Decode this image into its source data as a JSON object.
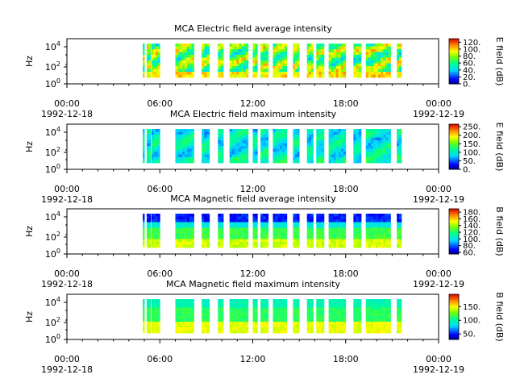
{
  "figure": {
    "background": "#ffffff"
  },
  "chart_data": [
    {
      "type": "heatmap",
      "title": "MCA  Electric field average intensity",
      "ylabel": "Hz",
      "yscale": "log",
      "yticks": [
        {
          "exp": "0"
        },
        {
          "exp": "2"
        },
        {
          "exp": "4"
        }
      ],
      "xticks": [
        {
          "time": "00:00",
          "date": "1992-12-18"
        },
        {
          "time": "06:00",
          "date": ""
        },
        {
          "time": "12:00",
          "date": ""
        },
        {
          "time": "18:00",
          "date": ""
        },
        {
          "time": "00:00",
          "date": "1992-12-19"
        }
      ],
      "xrange_hours": [
        0,
        24
      ],
      "data_segments_hours": [
        [
          4.9,
          5.0
        ],
        [
          5.15,
          5.4
        ],
        [
          5.45,
          6.0
        ],
        [
          7.0,
          8.2
        ],
        [
          8.7,
          9.2
        ],
        [
          9.75,
          10.1
        ],
        [
          10.5,
          11.7
        ],
        [
          12.0,
          12.3
        ],
        [
          12.5,
          13.0
        ],
        [
          13.3,
          14.2
        ],
        [
          14.6,
          15.0
        ],
        [
          15.5,
          15.9
        ],
        [
          16.1,
          16.6
        ],
        [
          16.9,
          18.0
        ],
        [
          18.5,
          19.0
        ],
        [
          19.3,
          20.9
        ],
        [
          21.3,
          21.6
        ]
      ],
      "colorbar": {
        "label": "E field (dB)",
        "range": [
          0,
          130
        ],
        "ticks": [
          "0.",
          "20.",
          "40.",
          "60.",
          "80.",
          "100.",
          "120."
        ]
      },
      "style": "avg_e"
    },
    {
      "type": "heatmap",
      "title": "MCA  Electric field maximum intensity",
      "ylabel": "Hz",
      "yscale": "log",
      "yticks": [
        {
          "exp": "0"
        },
        {
          "exp": "2"
        },
        {
          "exp": "4"
        }
      ],
      "xticks": [
        {
          "time": "00:00",
          "date": "1992-12-18"
        },
        {
          "time": "06:00",
          "date": ""
        },
        {
          "time": "12:00",
          "date": ""
        },
        {
          "time": "18:00",
          "date": ""
        },
        {
          "time": "00:00",
          "date": "1992-12-19"
        }
      ],
      "xrange_hours": [
        0,
        24
      ],
      "data_segments_hours": [
        [
          4.9,
          5.0
        ],
        [
          5.15,
          5.4
        ],
        [
          5.45,
          6.0
        ],
        [
          7.0,
          8.2
        ],
        [
          8.7,
          9.2
        ],
        [
          9.75,
          10.1
        ],
        [
          10.5,
          11.7
        ],
        [
          12.0,
          12.3
        ],
        [
          12.5,
          13.0
        ],
        [
          13.3,
          14.2
        ],
        [
          14.6,
          15.0
        ],
        [
          15.5,
          15.9
        ],
        [
          16.1,
          16.6
        ],
        [
          16.9,
          18.0
        ],
        [
          18.5,
          19.0
        ],
        [
          19.3,
          20.9
        ],
        [
          21.3,
          21.6
        ]
      ],
      "colorbar": {
        "label": "E field (dB)",
        "range": [
          0,
          265
        ],
        "ticks": [
          "0.",
          "50.",
          "100.",
          "150.",
          "200.",
          "250."
        ]
      },
      "style": "max_e"
    },
    {
      "type": "heatmap",
      "title": "MCA  Magnetic field average intensity",
      "ylabel": "Hz",
      "yscale": "log",
      "yticks": [
        {
          "exp": "0"
        },
        {
          "exp": "2"
        },
        {
          "exp": "4"
        }
      ],
      "xticks": [
        {
          "time": "00:00",
          "date": "1992-12-18"
        },
        {
          "time": "06:00",
          "date": ""
        },
        {
          "time": "12:00",
          "date": ""
        },
        {
          "time": "18:00",
          "date": ""
        },
        {
          "time": "00:00",
          "date": "1992-12-19"
        }
      ],
      "xrange_hours": [
        0,
        24
      ],
      "data_segments_hours": [
        [
          4.9,
          5.0
        ],
        [
          5.15,
          5.4
        ],
        [
          5.45,
          6.0
        ],
        [
          7.0,
          8.2
        ],
        [
          8.7,
          9.2
        ],
        [
          9.75,
          10.1
        ],
        [
          10.5,
          11.7
        ],
        [
          12.0,
          12.3
        ],
        [
          12.5,
          13.0
        ],
        [
          13.3,
          14.2
        ],
        [
          14.6,
          15.0
        ],
        [
          15.5,
          15.9
        ],
        [
          16.1,
          16.6
        ],
        [
          16.9,
          18.0
        ],
        [
          18.5,
          19.0
        ],
        [
          19.3,
          20.9
        ],
        [
          21.3,
          21.6
        ]
      ],
      "colorbar": {
        "label": "B field (dB)",
        "range": [
          55,
          190
        ],
        "ticks": [
          "60.",
          "80.",
          "100.",
          "120.",
          "140.",
          "160.",
          "180."
        ]
      },
      "style": "avg_b"
    },
    {
      "type": "heatmap",
      "title": "MCA  Magnetic field maximum intensity",
      "ylabel": "Hz",
      "yscale": "log",
      "yticks": [
        {
          "exp": "0"
        },
        {
          "exp": "2"
        },
        {
          "exp": "4"
        }
      ],
      "xticks": [
        {
          "time": "00:00",
          "date": "1992-12-18"
        },
        {
          "time": "06:00",
          "date": ""
        },
        {
          "time": "12:00",
          "date": ""
        },
        {
          "time": "18:00",
          "date": ""
        },
        {
          "time": "00:00",
          "date": "1992-12-19"
        }
      ],
      "xrange_hours": [
        0,
        24
      ],
      "data_segments_hours": [
        [
          4.9,
          5.0
        ],
        [
          5.15,
          5.4
        ],
        [
          5.45,
          6.0
        ],
        [
          7.0,
          8.2
        ],
        [
          8.7,
          9.2
        ],
        [
          9.75,
          10.1
        ],
        [
          10.5,
          11.7
        ],
        [
          12.0,
          12.3
        ],
        [
          12.5,
          13.0
        ],
        [
          13.3,
          14.2
        ],
        [
          14.6,
          15.0
        ],
        [
          15.5,
          15.9
        ],
        [
          16.1,
          16.6
        ],
        [
          16.9,
          18.0
        ],
        [
          18.5,
          19.0
        ],
        [
          19.3,
          20.9
        ],
        [
          21.3,
          21.6
        ]
      ],
      "colorbar": {
        "label": "B field (dB)",
        "range": [
          30,
          195
        ],
        "ticks": [
          "50.",
          "100.",
          "150."
        ]
      },
      "style": "max_b"
    }
  ]
}
